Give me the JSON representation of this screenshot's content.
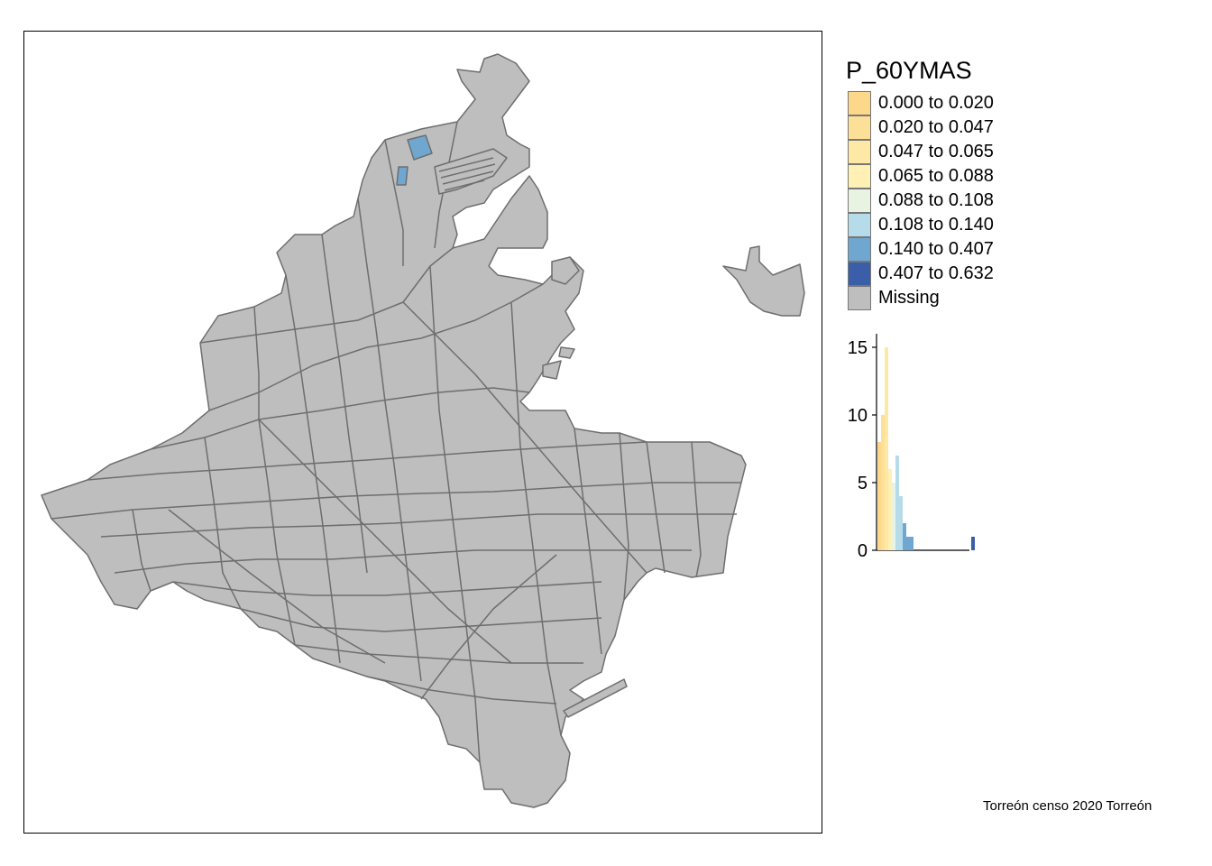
{
  "legend": {
    "title": "P_60YMAS",
    "classes": [
      {
        "label": "0.000 to 0.020",
        "color": "#fdd78a"
      },
      {
        "label": "0.020 to 0.047",
        "color": "#fde097"
      },
      {
        "label": "0.047 to 0.065",
        "color": "#fee8a6"
      },
      {
        "label": "0.065 to 0.088",
        "color": "#fff0b3"
      },
      {
        "label": "0.088 to 0.108",
        "color": "#e9f3e1"
      },
      {
        "label": "0.108 to 0.140",
        "color": "#b6dcea"
      },
      {
        "label": "0.140 to 0.407",
        "color": "#70a7d0"
      },
      {
        "label": "0.407 to 0.632",
        "color": "#3b5ea8"
      },
      {
        "label": "Missing",
        "color": "#bebebe"
      }
    ]
  },
  "map": {
    "fill_missing": "#bebebe",
    "border_color": "#6e6e6e",
    "highlight_color": "#70a7d0"
  },
  "chart_data": {
    "type": "bar",
    "yticks": [
      0,
      5,
      10,
      15
    ],
    "ylim": [
      0,
      16
    ],
    "bins": [
      {
        "color": "#fdd78a",
        "count": 8
      },
      {
        "color": "#fde097",
        "count": 10
      },
      {
        "color": "#fee8a6",
        "count": 15
      },
      {
        "color": "#fff0b3",
        "count": 6
      },
      {
        "color": "#e9f3e1",
        "count": 5
      },
      {
        "color": "#b6dcea",
        "count": 7
      },
      {
        "color": "#b6dcea",
        "count": 4
      },
      {
        "color": "#70a7d0",
        "count": 2
      },
      {
        "color": "#70a7d0",
        "count": 1
      },
      {
        "color": "#70a7d0",
        "count": 1
      },
      {
        "color": "#3b5ea8",
        "count": 1
      }
    ]
  },
  "credits": "Torreón censo 2020 Torreón"
}
